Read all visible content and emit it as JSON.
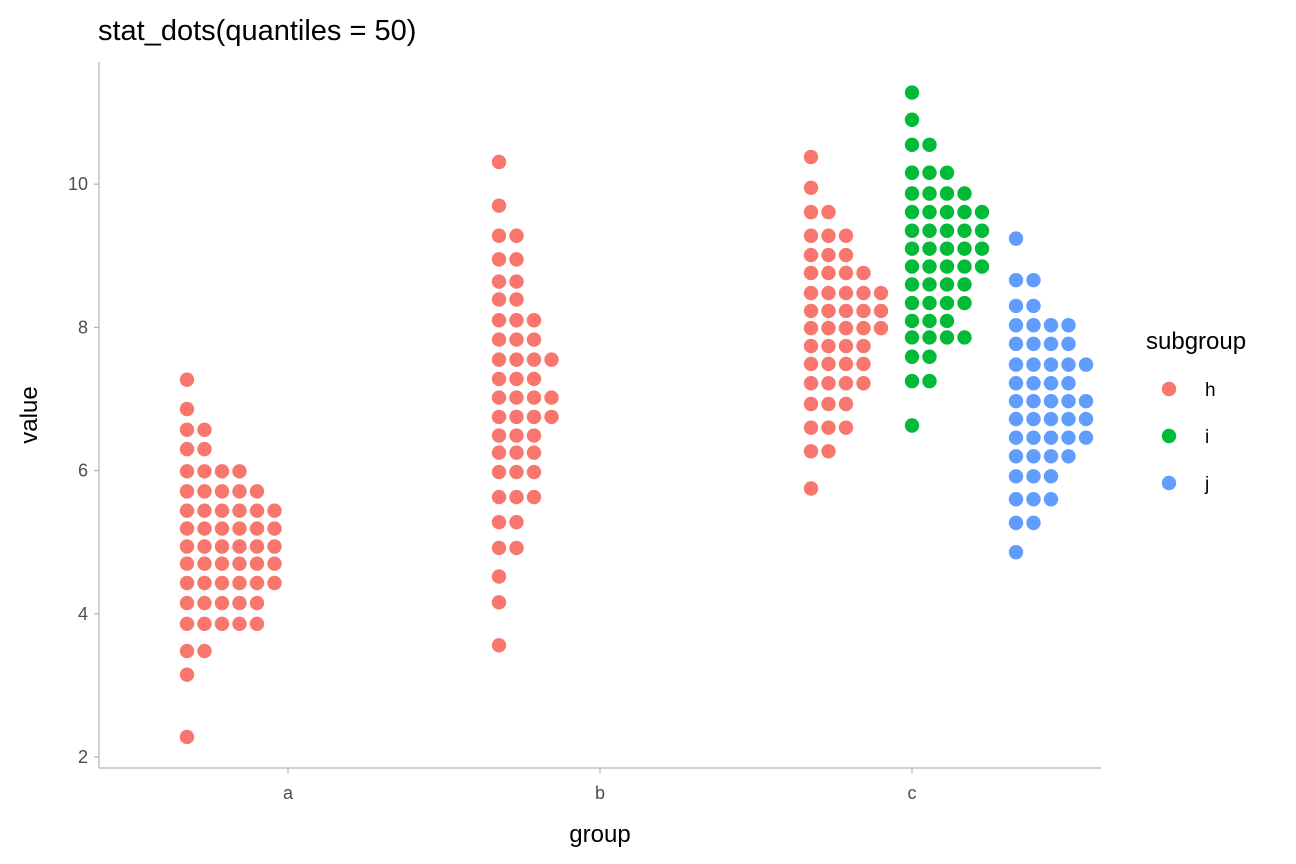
{
  "chart_data": {
    "type": "dots",
    "title": "stat_dots(quantiles = 50)",
    "xlabel": "group",
    "ylabel": "value",
    "categories": [
      "a",
      "b",
      "c"
    ],
    "ylim": [
      1.85,
      11.6
    ],
    "yticks": [
      2,
      4,
      6,
      8,
      10
    ],
    "grid": false,
    "legend": {
      "title": "subgroup",
      "position": "right",
      "items": [
        {
          "name": "h",
          "color": "#F8766D"
        },
        {
          "name": "i",
          "color": "#00BA38"
        },
        {
          "name": "j",
          "color": "#619CFF"
        }
      ]
    },
    "series": [
      {
        "group": "a",
        "subgroup": "h",
        "color": "#F8766D",
        "bins": [
          {
            "y": 2.28,
            "count": 1
          },
          {
            "y": 3.15,
            "count": 1
          },
          {
            "y": 3.48,
            "count": 2
          },
          {
            "y": 3.86,
            "count": 5
          },
          {
            "y": 4.15,
            "count": 5
          },
          {
            "y": 4.43,
            "count": 6
          },
          {
            "y": 4.7,
            "count": 6
          },
          {
            "y": 4.94,
            "count": 6
          },
          {
            "y": 5.19,
            "count": 6
          },
          {
            "y": 5.44,
            "count": 6
          },
          {
            "y": 5.71,
            "count": 5
          },
          {
            "y": 5.99,
            "count": 4
          },
          {
            "y": 6.3,
            "count": 2
          },
          {
            "y": 6.57,
            "count": 2
          },
          {
            "y": 6.86,
            "count": 1
          },
          {
            "y": 7.27,
            "count": 1
          }
        ]
      },
      {
        "group": "b",
        "subgroup": "h",
        "color": "#F8766D",
        "bins": [
          {
            "y": 3.56,
            "count": 1
          },
          {
            "y": 4.16,
            "count": 1
          },
          {
            "y": 4.52,
            "count": 1
          },
          {
            "y": 4.92,
            "count": 2
          },
          {
            "y": 5.28,
            "count": 2
          },
          {
            "y": 5.63,
            "count": 3
          },
          {
            "y": 5.98,
            "count": 3
          },
          {
            "y": 6.25,
            "count": 3
          },
          {
            "y": 6.49,
            "count": 3
          },
          {
            "y": 6.75,
            "count": 4
          },
          {
            "y": 7.02,
            "count": 4
          },
          {
            "y": 7.28,
            "count": 3
          },
          {
            "y": 7.55,
            "count": 4
          },
          {
            "y": 7.83,
            "count": 3
          },
          {
            "y": 8.1,
            "count": 3
          },
          {
            "y": 8.39,
            "count": 2
          },
          {
            "y": 8.64,
            "count": 2
          },
          {
            "y": 8.95,
            "count": 2
          },
          {
            "y": 9.28,
            "count": 2
          },
          {
            "y": 9.7,
            "count": 1
          },
          {
            "y": 10.31,
            "count": 1
          }
        ]
      },
      {
        "group": "c",
        "subgroup": "h",
        "color": "#F8766D",
        "bins": [
          {
            "y": 5.75,
            "count": 1
          },
          {
            "y": 6.27,
            "count": 2
          },
          {
            "y": 6.6,
            "count": 3
          },
          {
            "y": 6.93,
            "count": 3
          },
          {
            "y": 7.22,
            "count": 4
          },
          {
            "y": 7.49,
            "count": 4
          },
          {
            "y": 7.74,
            "count": 4
          },
          {
            "y": 7.99,
            "count": 5
          },
          {
            "y": 8.23,
            "count": 5
          },
          {
            "y": 8.48,
            "count": 5
          },
          {
            "y": 8.76,
            "count": 4
          },
          {
            "y": 9.01,
            "count": 3
          },
          {
            "y": 9.28,
            "count": 3
          },
          {
            "y": 9.61,
            "count": 2
          },
          {
            "y": 9.95,
            "count": 1
          },
          {
            "y": 10.38,
            "count": 1
          }
        ]
      },
      {
        "group": "c",
        "subgroup": "i",
        "color": "#00BA38",
        "bins": [
          {
            "y": 6.63,
            "count": 1
          },
          {
            "y": 7.25,
            "count": 2
          },
          {
            "y": 7.59,
            "count": 2
          },
          {
            "y": 7.86,
            "count": 4
          },
          {
            "y": 8.09,
            "count": 3
          },
          {
            "y": 8.34,
            "count": 4
          },
          {
            "y": 8.6,
            "count": 4
          },
          {
            "y": 8.85,
            "count": 5
          },
          {
            "y": 9.1,
            "count": 5
          },
          {
            "y": 9.35,
            "count": 5
          },
          {
            "y": 9.61,
            "count": 5
          },
          {
            "y": 9.87,
            "count": 4
          },
          {
            "y": 10.16,
            "count": 3
          },
          {
            "y": 10.55,
            "count": 2
          },
          {
            "y": 10.9,
            "count": 1
          },
          {
            "y": 11.28,
            "count": 1
          }
        ]
      },
      {
        "group": "c",
        "subgroup": "j",
        "color": "#619CFF",
        "bins": [
          {
            "y": 4.86,
            "count": 1
          },
          {
            "y": 5.27,
            "count": 2
          },
          {
            "y": 5.6,
            "count": 3
          },
          {
            "y": 5.92,
            "count": 3
          },
          {
            "y": 6.2,
            "count": 4
          },
          {
            "y": 6.46,
            "count": 5
          },
          {
            "y": 6.72,
            "count": 5
          },
          {
            "y": 6.97,
            "count": 5
          },
          {
            "y": 7.22,
            "count": 4
          },
          {
            "y": 7.48,
            "count": 5
          },
          {
            "y": 7.77,
            "count": 4
          },
          {
            "y": 8.03,
            "count": 4
          },
          {
            "y": 8.3,
            "count": 2
          },
          {
            "y": 8.66,
            "count": 2
          },
          {
            "y": 9.24,
            "count": 1
          }
        ]
      }
    ]
  }
}
